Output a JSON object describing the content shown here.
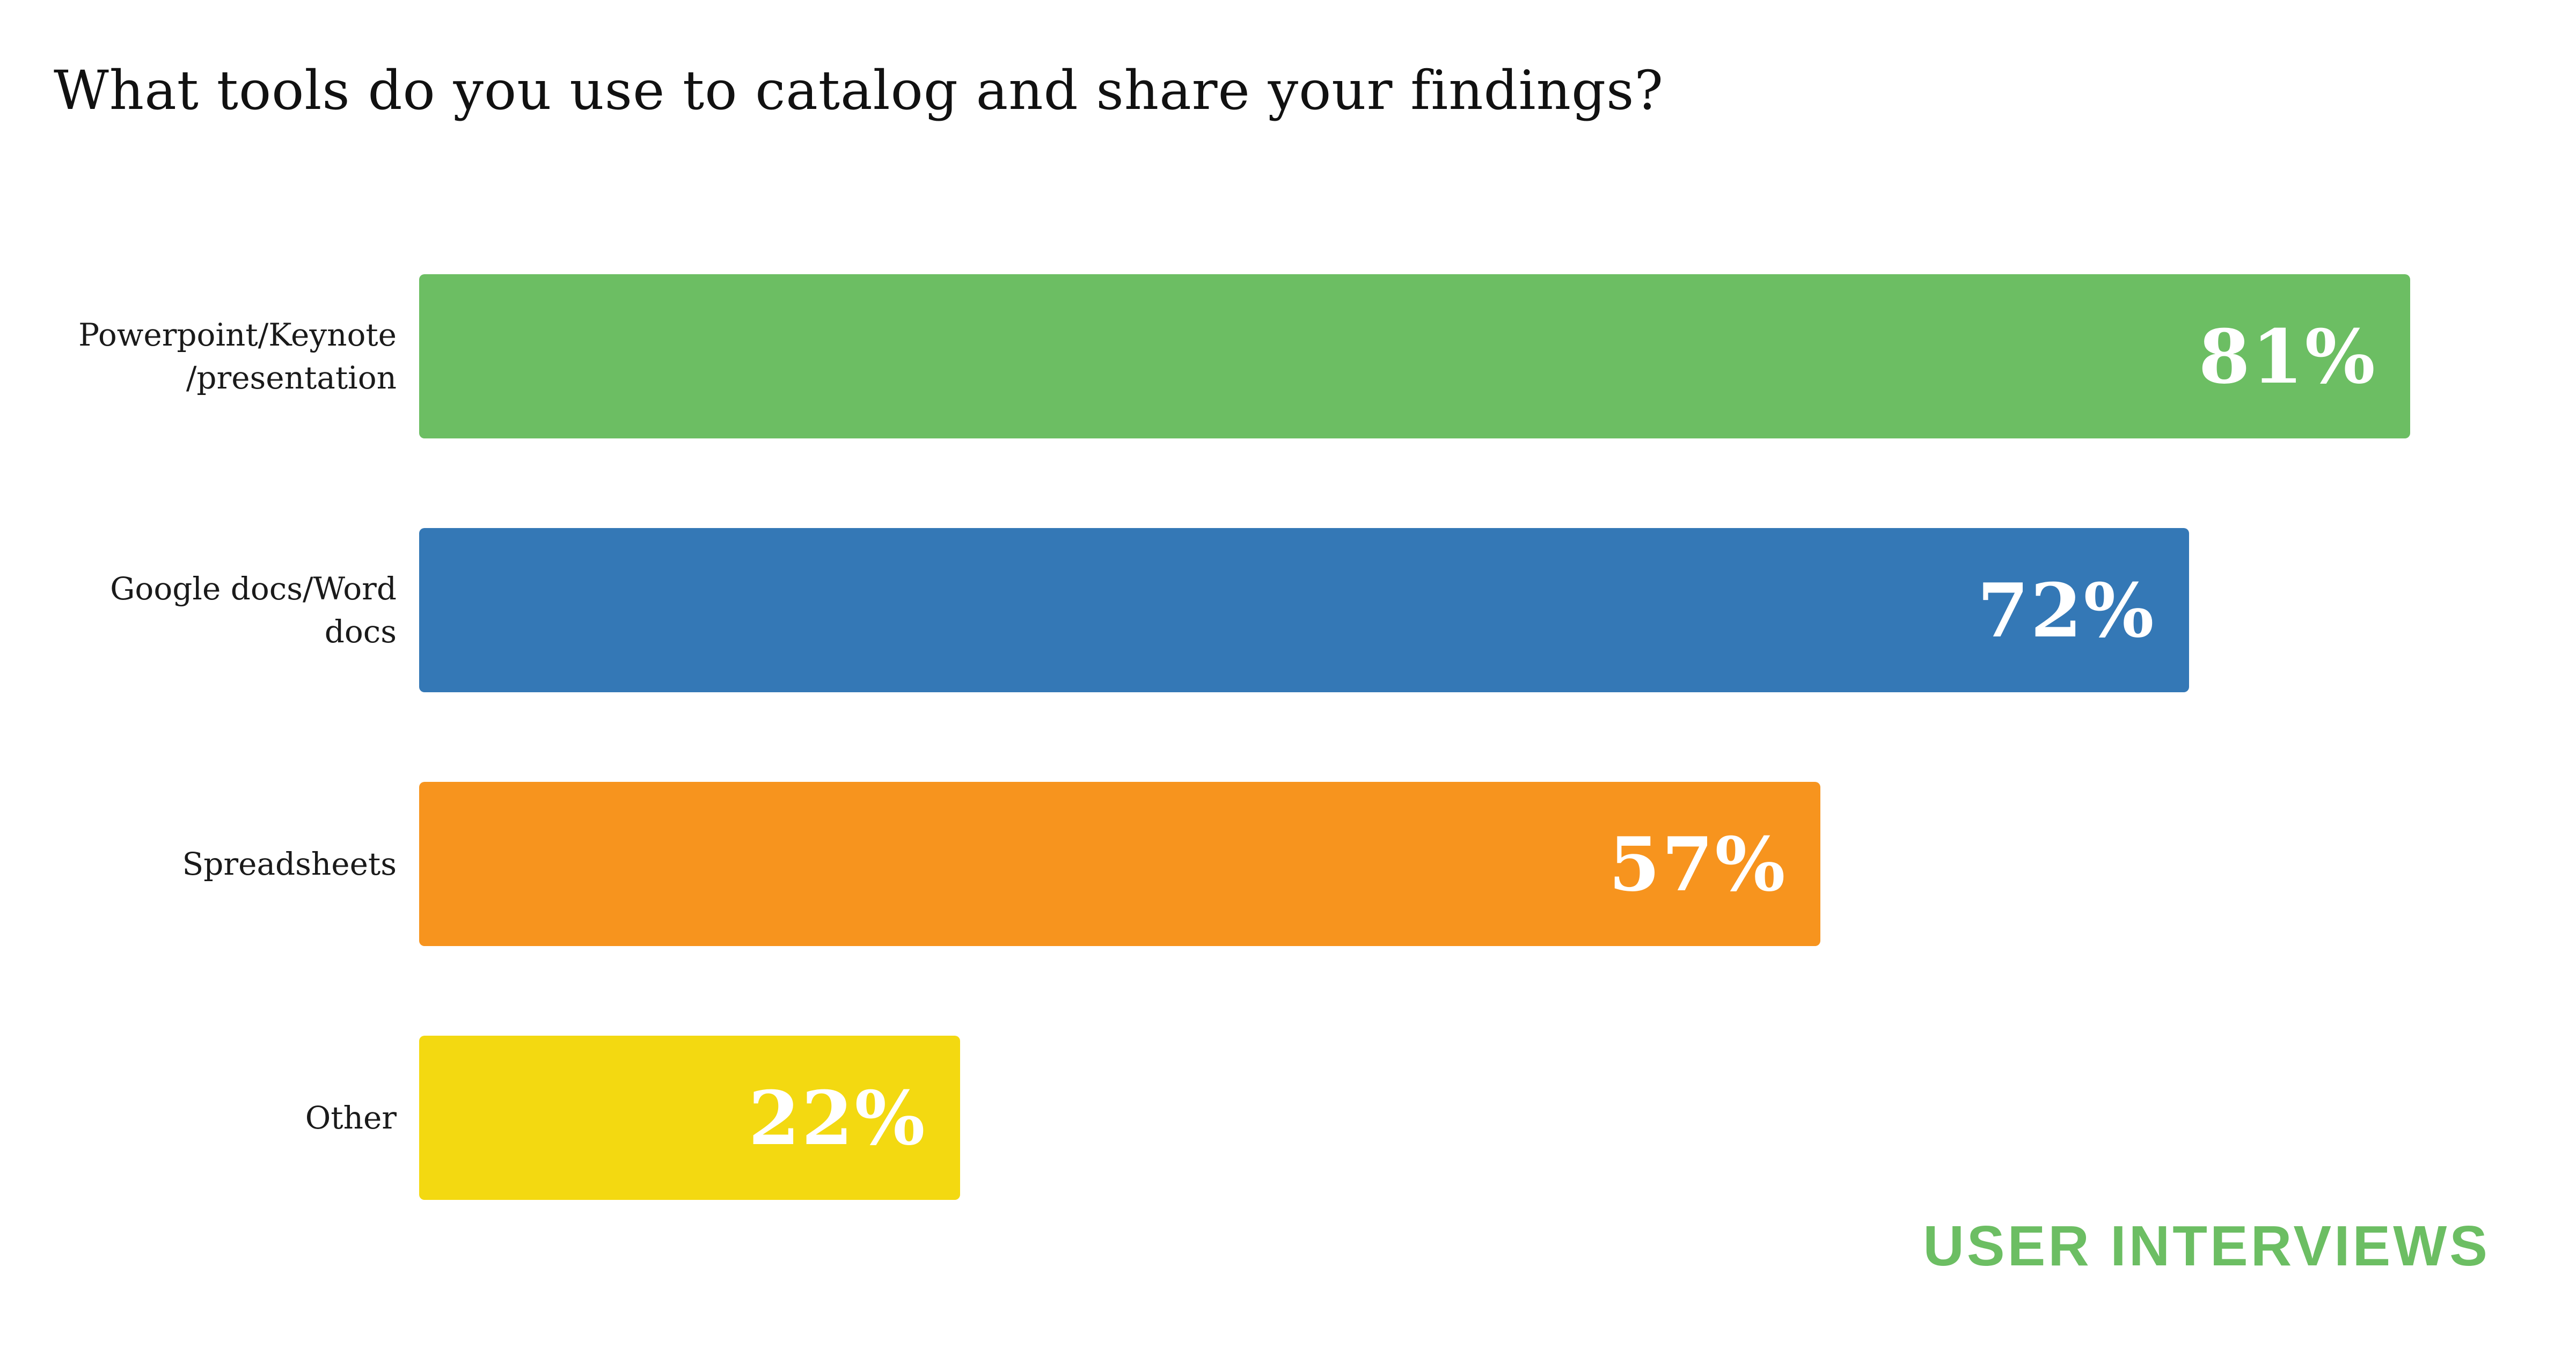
{
  "chart_data": {
    "type": "bar",
    "orientation": "horizontal",
    "title": "What tools do you use to catalog and share your findings?",
    "categories": [
      "Powerpoint/Keynote /presentation",
      "Google docs/Word docs",
      "Spreadsheets",
      "Other"
    ],
    "category_label_lines": [
      [
        "Powerpoint/Keynote",
        "/presentation"
      ],
      [
        "Google docs/Word",
        "docs"
      ],
      [
        "Spreadsheets"
      ],
      [
        "Other"
      ]
    ],
    "values": [
      81,
      72,
      57,
      22
    ],
    "value_labels": [
      "81%",
      "72%",
      "57%",
      "22%"
    ],
    "bar_colors": [
      "#6cbe63",
      "#3478b6",
      "#f7941e",
      "#f3d911"
    ],
    "value_label_color": "#ffffff",
    "value_label_position": "inside-right",
    "xlim": [
      0,
      100
    ],
    "grid": false,
    "legend": false,
    "background": "#ffffff"
  },
  "branding": {
    "logo_text": "USER INTERVIEWS",
    "logo_color": "#6cbe63"
  }
}
